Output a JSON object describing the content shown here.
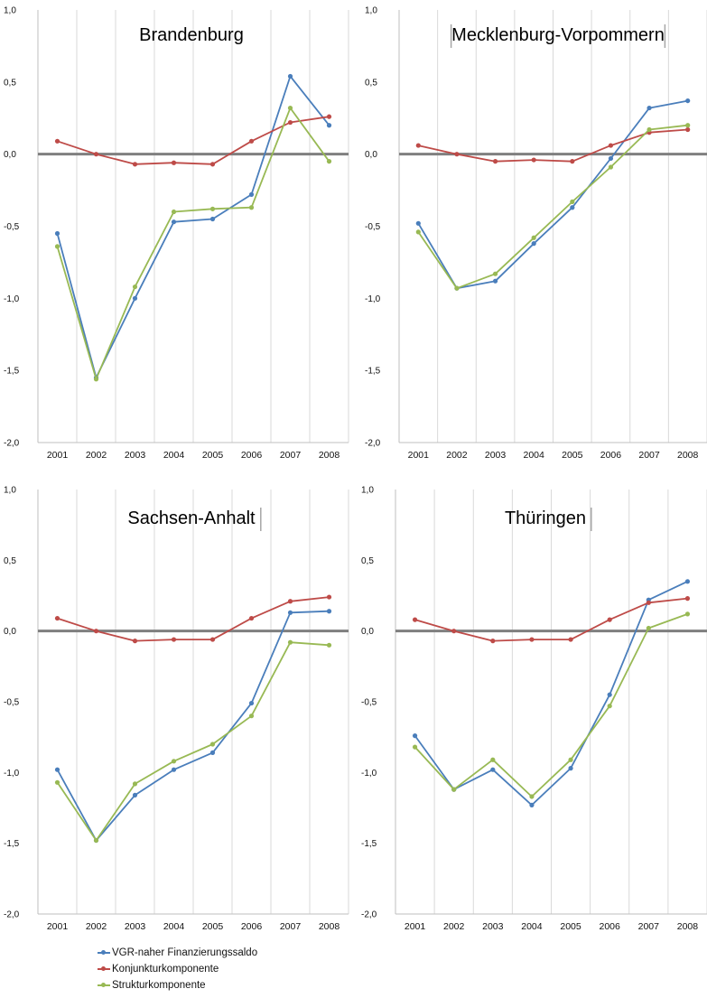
{
  "colors": {
    "vgr": "#4A7EBB",
    "konjunktur": "#BE4B48",
    "struktur": "#98B954",
    "zero_line": "#7F7F7F",
    "grid": "#D9D9D9",
    "axis": "#BFBFBF"
  },
  "legend": {
    "items": [
      {
        "label": "VGR-naher Finanzierungssaldo",
        "color": "#4A7EBB"
      },
      {
        "label": "Konjunkturkomponente",
        "color": "#BE4B48"
      },
      {
        "label": "Strukturkomponente",
        "color": "#98B954"
      }
    ]
  },
  "chart_data": [
    {
      "type": "line",
      "title": "Brandenburg",
      "categories": [
        "2001",
        "2002",
        "2003",
        "2004",
        "2005",
        "2006",
        "2007",
        "2008"
      ],
      "ylim": [
        -2.0,
        1.0
      ],
      "yticks": [
        "1,0",
        "0,5",
        "0,0",
        "-0,5",
        "-1,0",
        "-1,5",
        "-2,0"
      ],
      "grid": "vertical",
      "series": [
        {
          "name": "VGR-naher Finanzierungssaldo",
          "values": [
            -0.55,
            -1.55,
            -1.0,
            -0.47,
            -0.45,
            -0.28,
            0.54,
            0.2
          ]
        },
        {
          "name": "Konjunkturkomponente",
          "values": [
            0.09,
            0.0,
            -0.07,
            -0.06,
            -0.07,
            0.09,
            0.22,
            0.26
          ]
        },
        {
          "name": "Strukturkomponente",
          "values": [
            -0.64,
            -1.56,
            -0.92,
            -0.4,
            -0.38,
            -0.37,
            0.32,
            -0.05
          ]
        }
      ]
    },
    {
      "type": "line",
      "title": "Mecklenburg-Vorpommern",
      "categories": [
        "2001",
        "2002",
        "2003",
        "2004",
        "2005",
        "2006",
        "2007",
        "2008"
      ],
      "ylim": [
        -2.0,
        1.0
      ],
      "yticks": [
        "1,0",
        "0,5",
        "0,0",
        "-0,5",
        "-1,0",
        "-1,5",
        "-2,0"
      ],
      "grid": "vertical",
      "series": [
        {
          "name": "VGR-naher Finanzierungssaldo",
          "values": [
            -0.48,
            -0.93,
            -0.88,
            -0.62,
            -0.37,
            -0.03,
            0.32,
            0.37
          ]
        },
        {
          "name": "Konjunkturkomponente",
          "values": [
            0.06,
            0.0,
            -0.05,
            -0.04,
            -0.05,
            0.06,
            0.15,
            0.17
          ]
        },
        {
          "name": "Strukturkomponente",
          "values": [
            -0.54,
            -0.93,
            -0.83,
            -0.58,
            -0.33,
            -0.09,
            0.17,
            0.2
          ]
        }
      ]
    },
    {
      "type": "line",
      "title": "Sachsen-Anhalt",
      "categories": [
        "2001",
        "2002",
        "2003",
        "2004",
        "2005",
        "2006",
        "2007",
        "2008"
      ],
      "ylim": [
        -2.0,
        1.0
      ],
      "yticks": [
        "1,0",
        "0,5",
        "0,0",
        "-0,5",
        "-1,0",
        "-1,5",
        "-2,0"
      ],
      "grid": "vertical",
      "series": [
        {
          "name": "VGR-naher Finanzierungssaldo",
          "values": [
            -0.98,
            -1.48,
            -1.16,
            -0.98,
            -0.86,
            -0.51,
            0.13,
            0.14
          ]
        },
        {
          "name": "Konjunkturkomponente",
          "values": [
            0.09,
            0.0,
            -0.07,
            -0.06,
            -0.06,
            0.09,
            0.21,
            0.24
          ]
        },
        {
          "name": "Strukturkomponente",
          "values": [
            -1.07,
            -1.48,
            -1.08,
            -0.92,
            -0.8,
            -0.6,
            -0.08,
            -0.1
          ]
        }
      ]
    },
    {
      "type": "line",
      "title": "Thüringen",
      "categories": [
        "2001",
        "2002",
        "2003",
        "2004",
        "2005",
        "2006",
        "2007",
        "2008"
      ],
      "ylim": [
        -2.0,
        1.0
      ],
      "yticks": [
        "1,0",
        "0,5",
        "0,0",
        "-0,5",
        "-1,0",
        "-1,5",
        "-2,0"
      ],
      "grid": "vertical",
      "series": [
        {
          "name": "VGR-naher Finanzierungssaldo",
          "values": [
            -0.74,
            -1.12,
            -0.98,
            -1.23,
            -0.97,
            -0.45,
            0.22,
            0.35
          ]
        },
        {
          "name": "Konjunkturkomponente",
          "values": [
            0.08,
            0.0,
            -0.07,
            -0.06,
            -0.06,
            0.08,
            0.2,
            0.23
          ]
        },
        {
          "name": "Strukturkomponente",
          "values": [
            -0.82,
            -1.12,
            -0.91,
            -1.17,
            -0.91,
            -0.53,
            0.02,
            0.12
          ]
        }
      ]
    }
  ]
}
